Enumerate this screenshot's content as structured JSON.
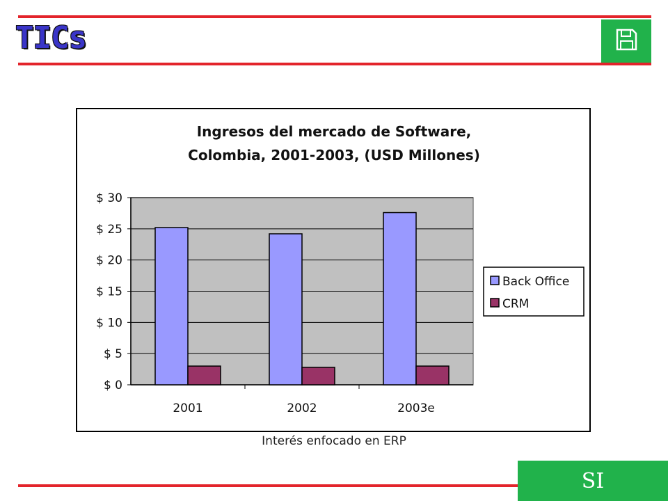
{
  "header": {
    "title": "TICs",
    "accent_color": "#e3242b",
    "save_icon": "floppy-disk-icon"
  },
  "footer": {
    "button_label": "SI",
    "button_color": "#21b24b"
  },
  "chart_data": {
    "type": "bar",
    "title_lines": [
      "Ingresos del mercado de Software,",
      "Colombia, 2001-2003, (USD Millones)"
    ],
    "categories": [
      "2001",
      "2002",
      "2003e"
    ],
    "series": [
      {
        "name": "Back Office",
        "values": [
          25.2,
          24.2,
          27.6
        ],
        "color": "#9999ff"
      },
      {
        "name": "CRM",
        "values": [
          3.0,
          2.8,
          3.0
        ],
        "color": "#993366"
      }
    ],
    "ylim": [
      0,
      30
    ],
    "yticks": [
      "$ 0",
      "$ 5",
      "$ 10",
      "$ 15",
      "$ 20",
      "$ 25",
      "$ 30"
    ],
    "ytick_values": [
      0,
      5,
      10,
      15,
      20,
      25,
      30
    ],
    "grid": true,
    "plot_background": "#c0c0c0",
    "legend_position": "right",
    "caption": "Interés enfocado en ERP"
  }
}
